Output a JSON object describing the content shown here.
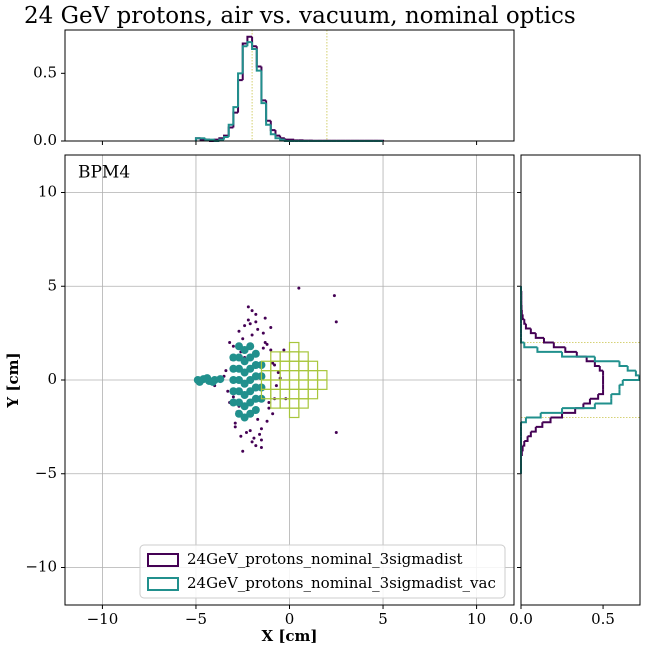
{
  "chart_data": [
    {
      "type": "scatter",
      "title": "24 GeV protons, air vs. vacuum, nominal optics",
      "annotation": "BPM4",
      "xlabel": "X [cm]",
      "ylabel": "Y [cm]",
      "xlim": [
        -12,
        12
      ],
      "ylim": [
        -12,
        12
      ],
      "xticks": [
        {
          "value": -10,
          "label": "−10"
        },
        {
          "value": -5,
          "label": "−5"
        },
        0,
        5,
        10
      ],
      "yticks": [
        {
          "value": -10,
          "label": "−10"
        },
        {
          "value": -5,
          "label": "−5"
        },
        0,
        5,
        10
      ],
      "grid": true,
      "legend": "lower center",
      "series": [
        {
          "name": "24GeV_protons_nominal_3sigmadist",
          "color": "#440154",
          "x": [
            -3.4,
            -3.2,
            -3.0,
            -2.9,
            -2.7,
            -2.6,
            -2.4,
            -2.2,
            -2.0,
            -1.8,
            -1.6,
            -1.4,
            -1.2,
            -1.0,
            -0.8,
            -0.6,
            -3.3,
            -3.1,
            -2.8,
            -2.5,
            -2.3,
            -2.1,
            -1.9,
            -1.7,
            -1.5,
            -1.3,
            -1.1,
            -0.9,
            -0.7,
            -3.5,
            -3.2,
            -2.9,
            -2.6,
            -2.3,
            -2.0,
            -1.7,
            -1.4,
            -1.1,
            -0.8,
            -0.5,
            -3.0,
            -2.7,
            -2.4,
            -2.1,
            -1.8,
            -1.5,
            -1.2,
            -0.9,
            -2.5,
            -2.0,
            -1.5,
            -1.0,
            -2.2,
            -1.8,
            -1.3,
            0.5,
            2.4,
            2.5,
            2.5,
            -0.3,
            -4.0,
            -0.2
          ],
          "y": [
            0.5,
            -1.2,
            1.8,
            -2.3,
            2.6,
            -3.0,
            2.9,
            3.2,
            -3.3,
            3.1,
            -2.9,
            2.5,
            -2.2,
            1.6,
            -1.0,
            0.4,
            -0.6,
            1.1,
            -1.7,
            2.2,
            -2.8,
            3.0,
            -3.1,
            2.7,
            -2.6,
            2.0,
            -1.5,
            0.9,
            -0.3,
            0.2,
            2.0,
            -2.5,
            1.5,
            -1.9,
            2.4,
            -2.1,
            1.7,
            -1.2,
            0.8,
            0.1,
            -0.9,
            -1.4,
            1.2,
            -2.7,
            3.5,
            -3.6,
            1.9,
            -1.8,
            -3.8,
            3.7,
            -3.2,
            2.8,
            3.9,
            -3.5,
            3.3,
            4.9,
            4.5,
            3.1,
            -2.8,
            1.6,
            -0.3,
            -1.0
          ]
        },
        {
          "name": "24GeV_protons_nominal_3sigmadist_vac",
          "color": "#21908d",
          "x": [
            -3.0,
            -3.0,
            -3.0,
            -3.0,
            -3.0,
            -2.7,
            -2.7,
            -2.7,
            -2.7,
            -2.7,
            -2.7,
            -2.7,
            -2.4,
            -2.4,
            -2.4,
            -2.4,
            -2.4,
            -2.4,
            -2.4,
            -2.1,
            -2.1,
            -2.1,
            -2.1,
            -2.1,
            -2.1,
            -2.1,
            -1.8,
            -1.8,
            -1.8,
            -1.8,
            -1.8,
            -1.8,
            -1.5,
            -1.5,
            -1.5,
            -1.5,
            -4.9,
            -4.6,
            -4.3,
            -4.0,
            -3.7,
            -4.8,
            -4.4,
            -4.1
          ],
          "y": [
            -1.2,
            -0.6,
            0,
            0.6,
            1.2,
            -1.8,
            -1.2,
            -0.6,
            0,
            0.6,
            1.2,
            1.8,
            -2.0,
            -1.4,
            -0.8,
            -0.2,
            0.4,
            1.0,
            1.6,
            -1.8,
            -1.2,
            -0.6,
            0,
            0.6,
            1.2,
            1.8,
            -1.6,
            -1.0,
            -0.4,
            0.2,
            0.8,
            1.4,
            -1.0,
            -0.4,
            0.2,
            0.8,
            0,
            0.05,
            -0.05,
            0,
            0.05,
            -0.1,
            0.1,
            -0.1
          ]
        }
      ],
      "boxes": {
        "color": "#a8c63c",
        "size": 0.5,
        "x": [
          -1.25,
          -1.25,
          -1.25,
          -1.25,
          -0.75,
          -0.75,
          -0.75,
          -0.75,
          -0.75,
          -0.75,
          -0.25,
          -0.25,
          -0.25,
          -0.25,
          -0.25,
          -0.25,
          0.25,
          0.25,
          0.25,
          0.25,
          0.25,
          0.25,
          0.25,
          0.25,
          0.75,
          0.75,
          0.75,
          0.75,
          0.75,
          0.75,
          1.25,
          1.25,
          1.25,
          1.25,
          1.75,
          1.75
        ],
        "y": [
          -0.75,
          -0.25,
          0.25,
          0.75,
          -1.25,
          -0.75,
          -0.25,
          0.25,
          0.75,
          1.25,
          -1.25,
          -0.75,
          -0.25,
          0.25,
          0.75,
          1.25,
          -1.75,
          -1.25,
          -0.75,
          -0.25,
          0.25,
          0.75,
          1.25,
          1.75,
          -1.25,
          -0.75,
          -0.25,
          0.25,
          0.75,
          1.25,
          -0.75,
          -0.25,
          0.25,
          0.75,
          -0.25,
          0.25
        ]
      }
    },
    {
      "type": "histogram",
      "orientation": "vertical",
      "xlim": [
        -12,
        12
      ],
      "ylim": [
        0,
        0.82
      ],
      "yticks": [
        {
          "value": 0,
          "label": "0.0"
        },
        0.5
      ],
      "vlines": [
        -2,
        2
      ],
      "line_color": "#c9c44a",
      "bins": [
        -5,
        -4.75,
        -4.5,
        -4.25,
        -4,
        -3.75,
        -3.5,
        -3.25,
        -3,
        -2.75,
        -2.5,
        -2.25,
        -2,
        -1.75,
        -1.5,
        -1.25,
        -1,
        -0.75,
        -0.5,
        -0.25,
        0,
        0.25,
        0.5,
        0.75,
        1,
        1.25,
        1.5,
        1.75,
        2,
        2.25,
        2.5,
        2.75,
        3,
        3.25,
        3.5,
        3.75,
        4,
        4.25,
        4.5,
        4.75,
        5
      ],
      "series": [
        {
          "color": "#440154",
          "values": [
            0.02,
            0.01,
            0.01,
            0,
            0.01,
            0.02,
            0.04,
            0.1,
            0.21,
            0.45,
            0.72,
            0.77,
            0.7,
            0.55,
            0.3,
            0.15,
            0.08,
            0.04,
            0.02,
            0.01,
            0.01,
            0.005,
            0.005,
            0.003,
            0.003,
            0.002,
            0.002,
            0.002,
            0.002,
            0.002,
            0.002,
            0.002,
            0.002,
            0.002,
            0.002,
            0.002,
            0.002,
            0.002,
            0.002,
            0.002
          ]
        },
        {
          "color": "#21908d",
          "values": [
            0.02,
            0.02,
            0.01,
            0.01,
            0,
            0.01,
            0.03,
            0.12,
            0.25,
            0.5,
            0.7,
            0.73,
            0.68,
            0.52,
            0.28,
            0.12,
            0.05,
            0.02,
            0.01,
            0,
            0,
            0,
            0,
            0,
            0,
            0,
            0,
            0,
            0,
            0,
            0,
            0,
            0,
            0,
            0,
            0,
            0,
            0,
            0,
            0
          ]
        }
      ]
    },
    {
      "type": "histogram",
      "orientation": "horizontal",
      "xlim": [
        0,
        0.725
      ],
      "ylim": [
        -12,
        12
      ],
      "xticks": [
        {
          "value": 0,
          "label": "0.0"
        },
        0.5
      ],
      "hlines": [
        -2,
        2
      ],
      "line_color": "#c9c44a",
      "bins": [
        -5,
        -4.75,
        -4.5,
        -4.25,
        -4,
        -3.75,
        -3.5,
        -3.25,
        -3,
        -2.75,
        -2.5,
        -2.25,
        -2,
        -1.75,
        -1.5,
        -1.25,
        -1,
        -0.75,
        -0.5,
        -0.25,
        0,
        0.25,
        0.5,
        0.75,
        1,
        1.25,
        1.5,
        1.75,
        2,
        2.25,
        2.5,
        2.75,
        3,
        3.25,
        3.5,
        3.75,
        4,
        4.25,
        4.5,
        4.75,
        5
      ],
      "series": [
        {
          "color": "#440154",
          "values": [
            0,
            0,
            0,
            0,
            0.005,
            0.01,
            0.02,
            0.04,
            0.06,
            0.09,
            0.13,
            0.18,
            0.25,
            0.33,
            0.38,
            0.42,
            0.47,
            0.5,
            0.5,
            0.5,
            0.5,
            0.5,
            0.48,
            0.45,
            0.4,
            0.34,
            0.27,
            0.2,
            0.14,
            0.09,
            0.06,
            0.03,
            0.02,
            0.01,
            0.005,
            0.003,
            0.002,
            0.002,
            0.002,
            0
          ]
        },
        {
          "color": "#21908d",
          "values": [
            0,
            0,
            0,
            0,
            0,
            0,
            0,
            0,
            0,
            0,
            0,
            0.03,
            0.12,
            0.25,
            0.45,
            0.55,
            0.55,
            0.6,
            0.6,
            0.62,
            0.72,
            0.7,
            0.65,
            0.6,
            0.45,
            0.25,
            0.1,
            0.02,
            0,
            0,
            0,
            0,
            0,
            0,
            0,
            0,
            0,
            0,
            0,
            0
          ]
        }
      ]
    }
  ]
}
